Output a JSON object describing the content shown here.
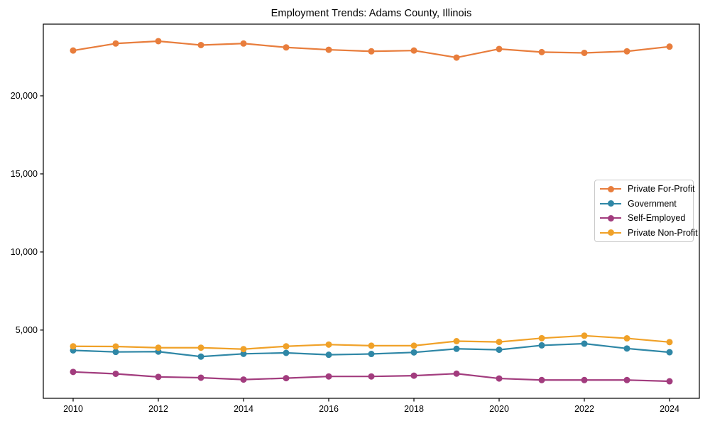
{
  "chart_data": {
    "type": "line",
    "title": "Employment Trends: Adams County, Illinois",
    "xlabel": "",
    "ylabel": "",
    "x": [
      2010,
      2011,
      2012,
      2013,
      2014,
      2015,
      2016,
      2017,
      2018,
      2019,
      2020,
      2021,
      2022,
      2023,
      2024
    ],
    "series": [
      {
        "name": "Private For-Profit",
        "color": "#e87d3c",
        "values": [
          22900,
          23350,
          23500,
          23250,
          23350,
          23100,
          22950,
          22850,
          22900,
          22450,
          23000,
          22800,
          22750,
          22850,
          23150
        ]
      },
      {
        "name": "Government",
        "color": "#2f87a6",
        "values": [
          3700,
          3600,
          3620,
          3300,
          3480,
          3540,
          3420,
          3470,
          3570,
          3800,
          3740,
          4020,
          4130,
          3820,
          3580
        ]
      },
      {
        "name": "Self-Employed",
        "color": "#a23c7e",
        "values": [
          2320,
          2200,
          2000,
          1950,
          1830,
          1920,
          2030,
          2030,
          2080,
          2210,
          1900,
          1800,
          1800,
          1800,
          1720
        ]
      },
      {
        "name": "Private Non-Profit",
        "color": "#f0a128",
        "values": [
          3960,
          3950,
          3870,
          3870,
          3780,
          3960,
          4070,
          4000,
          4000,
          4290,
          4240,
          4480,
          4640,
          4470,
          4230
        ]
      }
    ],
    "xticks": [
      2010,
      2012,
      2014,
      2016,
      2018,
      2020,
      2022,
      2024
    ],
    "xtick_labels": [
      "2010",
      "2012",
      "2014",
      "2016",
      "2018",
      "2020",
      "2022",
      "2024"
    ],
    "yticks": [
      5000,
      10000,
      15000,
      20000
    ],
    "ytick_labels": [
      "5,000",
      "10,000",
      "15,000",
      "20,000"
    ],
    "xlim": [
      2009.3,
      2024.7
    ],
    "ylim": [
      630,
      24590
    ],
    "grid": false,
    "legend_position": "center-right",
    "marker": "circle",
    "axis_color": "#000000"
  }
}
